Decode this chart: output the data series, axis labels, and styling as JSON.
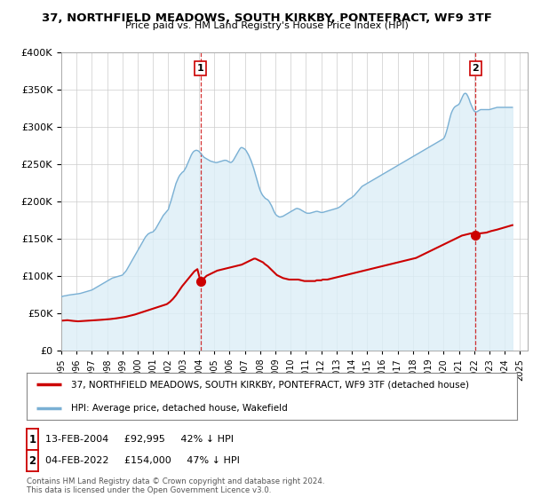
{
  "title": "37, NORTHFIELD MEADOWS, SOUTH KIRKBY, PONTEFRACT, WF9 3TF",
  "subtitle": "Price paid vs. HM Land Registry's House Price Index (HPI)",
  "ylim": [
    0,
    400000
  ],
  "xlim_start": 1995.0,
  "xlim_end": 2025.5,
  "hpi_years": [
    1995.0,
    1995.083,
    1995.167,
    1995.25,
    1995.333,
    1995.417,
    1995.5,
    1995.583,
    1995.667,
    1995.75,
    1995.833,
    1995.917,
    1996.0,
    1996.083,
    1996.167,
    1996.25,
    1996.333,
    1996.417,
    1996.5,
    1996.583,
    1996.667,
    1996.75,
    1996.833,
    1996.917,
    1997.0,
    1997.083,
    1997.167,
    1997.25,
    1997.333,
    1997.417,
    1997.5,
    1997.583,
    1997.667,
    1997.75,
    1997.833,
    1997.917,
    1998.0,
    1998.083,
    1998.167,
    1998.25,
    1998.333,
    1998.417,
    1998.5,
    1998.583,
    1998.667,
    1998.75,
    1998.833,
    1998.917,
    1999.0,
    1999.083,
    1999.167,
    1999.25,
    1999.333,
    1999.417,
    1999.5,
    1999.583,
    1999.667,
    1999.75,
    1999.833,
    1999.917,
    2000.0,
    2000.083,
    2000.167,
    2000.25,
    2000.333,
    2000.417,
    2000.5,
    2000.583,
    2000.667,
    2000.75,
    2000.833,
    2000.917,
    2001.0,
    2001.083,
    2001.167,
    2001.25,
    2001.333,
    2001.417,
    2001.5,
    2001.583,
    2001.667,
    2001.75,
    2001.833,
    2001.917,
    2002.0,
    2002.083,
    2002.167,
    2002.25,
    2002.333,
    2002.417,
    2002.5,
    2002.583,
    2002.667,
    2002.75,
    2002.833,
    2002.917,
    2003.0,
    2003.083,
    2003.167,
    2003.25,
    2003.333,
    2003.417,
    2003.5,
    2003.583,
    2003.667,
    2003.75,
    2003.833,
    2003.917,
    2004.0,
    2004.083,
    2004.167,
    2004.25,
    2004.333,
    2004.417,
    2004.5,
    2004.583,
    2004.667,
    2004.75,
    2004.833,
    2004.917,
    2005.0,
    2005.083,
    2005.167,
    2005.25,
    2005.333,
    2005.417,
    2005.5,
    2005.583,
    2005.667,
    2005.75,
    2005.833,
    2005.917,
    2006.0,
    2006.083,
    2006.167,
    2006.25,
    2006.333,
    2006.417,
    2006.5,
    2006.583,
    2006.667,
    2006.75,
    2006.833,
    2006.917,
    2007.0,
    2007.083,
    2007.167,
    2007.25,
    2007.333,
    2007.417,
    2007.5,
    2007.583,
    2007.667,
    2007.75,
    2007.833,
    2007.917,
    2008.0,
    2008.083,
    2008.167,
    2008.25,
    2008.333,
    2008.417,
    2008.5,
    2008.583,
    2008.667,
    2008.75,
    2008.833,
    2008.917,
    2009.0,
    2009.083,
    2009.167,
    2009.25,
    2009.333,
    2009.417,
    2009.5,
    2009.583,
    2009.667,
    2009.75,
    2009.833,
    2009.917,
    2010.0,
    2010.083,
    2010.167,
    2010.25,
    2010.333,
    2010.417,
    2010.5,
    2010.583,
    2010.667,
    2010.75,
    2010.833,
    2010.917,
    2011.0,
    2011.083,
    2011.167,
    2011.25,
    2011.333,
    2011.417,
    2011.5,
    2011.583,
    2011.667,
    2011.75,
    2011.833,
    2011.917,
    2012.0,
    2012.083,
    2012.167,
    2012.25,
    2012.333,
    2012.417,
    2012.5,
    2012.583,
    2012.667,
    2012.75,
    2012.833,
    2012.917,
    2013.0,
    2013.083,
    2013.167,
    2013.25,
    2013.333,
    2013.417,
    2013.5,
    2013.583,
    2013.667,
    2013.75,
    2013.833,
    2013.917,
    2014.0,
    2014.083,
    2014.167,
    2014.25,
    2014.333,
    2014.417,
    2014.5,
    2014.583,
    2014.667,
    2014.75,
    2014.833,
    2014.917,
    2015.0,
    2015.083,
    2015.167,
    2015.25,
    2015.333,
    2015.417,
    2015.5,
    2015.583,
    2015.667,
    2015.75,
    2015.833,
    2015.917,
    2016.0,
    2016.083,
    2016.167,
    2016.25,
    2016.333,
    2016.417,
    2016.5,
    2016.583,
    2016.667,
    2016.75,
    2016.833,
    2016.917,
    2017.0,
    2017.083,
    2017.167,
    2017.25,
    2017.333,
    2017.417,
    2017.5,
    2017.583,
    2017.667,
    2017.75,
    2017.833,
    2017.917,
    2018.0,
    2018.083,
    2018.167,
    2018.25,
    2018.333,
    2018.417,
    2018.5,
    2018.583,
    2018.667,
    2018.75,
    2018.833,
    2018.917,
    2019.0,
    2019.083,
    2019.167,
    2019.25,
    2019.333,
    2019.417,
    2019.5,
    2019.583,
    2019.667,
    2019.75,
    2019.833,
    2019.917,
    2020.0,
    2020.083,
    2020.167,
    2020.25,
    2020.333,
    2020.417,
    2020.5,
    2020.583,
    2020.667,
    2020.75,
    2020.833,
    2020.917,
    2021.0,
    2021.083,
    2021.167,
    2021.25,
    2021.333,
    2021.417,
    2021.5,
    2021.583,
    2021.667,
    2021.75,
    2021.833,
    2021.917,
    2022.0,
    2022.083,
    2022.167,
    2022.25,
    2022.333,
    2022.417,
    2022.5,
    2022.583,
    2022.667,
    2022.75,
    2022.833,
    2022.917,
    2023.0,
    2023.083,
    2023.167,
    2023.25,
    2023.333,
    2023.417,
    2023.5,
    2023.583,
    2023.667,
    2023.75,
    2023.833,
    2023.917,
    2024.0,
    2024.083,
    2024.167,
    2024.25,
    2024.333,
    2024.417,
    2024.5
  ],
  "hpi_values": [
    72000,
    72500,
    73000,
    73200,
    73500,
    74000,
    74200,
    74500,
    74800,
    75000,
    75200,
    75400,
    75600,
    75900,
    76200,
    76500,
    77000,
    77500,
    78000,
    78500,
    79000,
    79500,
    80000,
    80500,
    81000,
    82000,
    83000,
    84000,
    85000,
    86000,
    87000,
    88000,
    89000,
    90000,
    91000,
    92000,
    93000,
    94000,
    95000,
    96000,
    97000,
    97500,
    98000,
    98500,
    99000,
    99500,
    100000,
    100500,
    101000,
    103000,
    105000,
    107000,
    110000,
    113000,
    116000,
    119000,
    122000,
    125000,
    128000,
    131000,
    134000,
    137000,
    140000,
    143000,
    146000,
    149000,
    152000,
    154000,
    156000,
    157000,
    158000,
    158500,
    159000,
    161000,
    163000,
    166000,
    169000,
    172000,
    175000,
    178000,
    181000,
    183000,
    185000,
    187000,
    189000,
    195000,
    200000,
    206000,
    212000,
    218000,
    224000,
    228000,
    232000,
    235000,
    237000,
    239000,
    240000,
    243000,
    246000,
    250000,
    254000,
    258000,
    262000,
    265000,
    267000,
    268000,
    268500,
    268000,
    267000,
    265000,
    263000,
    261000,
    259000,
    258000,
    257000,
    256000,
    255000,
    254000,
    253500,
    253000,
    252500,
    252000,
    252000,
    252500,
    253000,
    253500,
    254000,
    254500,
    255000,
    255000,
    254500,
    253500,
    252500,
    252000,
    253000,
    255000,
    258000,
    261000,
    264000,
    267000,
    270000,
    272000,
    272000,
    271000,
    270000,
    268000,
    265000,
    262000,
    258000,
    254000,
    249000,
    244000,
    238000,
    232000,
    226000,
    220000,
    215000,
    211000,
    208000,
    206000,
    204000,
    203000,
    202000,
    200000,
    197000,
    194000,
    190000,
    186000,
    183000,
    181000,
    180000,
    179000,
    179000,
    179500,
    180000,
    181000,
    182000,
    183000,
    184000,
    185000,
    186000,
    187000,
    188000,
    189000,
    190000,
    190500,
    190000,
    189500,
    188500,
    187500,
    186500,
    185500,
    184500,
    184000,
    184000,
    184000,
    184500,
    185000,
    185500,
    186000,
    186500,
    186500,
    186000,
    185500,
    185000,
    185000,
    185500,
    186000,
    186500,
    187000,
    187500,
    188000,
    188500,
    189000,
    189500,
    190000,
    190500,
    191000,
    192000,
    193000,
    194500,
    196000,
    197500,
    199000,
    200500,
    202000,
    203000,
    204000,
    205000,
    206500,
    208000,
    210000,
    212000,
    214000,
    216000,
    218000,
    220000,
    221000,
    222000,
    223000,
    224000,
    225000,
    226000,
    227000,
    228000,
    229000,
    230000,
    231000,
    232000,
    233000,
    234000,
    235000,
    236000,
    237000,
    238000,
    239000,
    240000,
    241000,
    242000,
    243000,
    244000,
    245000,
    246000,
    247000,
    248000,
    249000,
    250000,
    251000,
    252000,
    253000,
    254000,
    255000,
    256000,
    257000,
    258000,
    259000,
    260000,
    261000,
    262000,
    263000,
    264000,
    265000,
    266000,
    267000,
    268000,
    269000,
    270000,
    271000,
    272000,
    273000,
    274000,
    275000,
    276000,
    277000,
    278000,
    279000,
    280000,
    281000,
    282000,
    283000,
    284000,
    287000,
    292000,
    298000,
    305000,
    312000,
    318000,
    322000,
    325000,
    327000,
    328000,
    329000,
    330000,
    333000,
    337000,
    341000,
    344000,
    345000,
    344000,
    341000,
    337000,
    332000,
    328000,
    324000,
    321000,
    320000,
    320000,
    321000,
    322000,
    323000,
    323000,
    323000,
    323000,
    323000,
    323000,
    323000,
    323000,
    323500,
    324000,
    324500,
    325000,
    325500,
    326000,
    326000,
    326000,
    326000,
    326000,
    326000,
    326000,
    326000,
    326000,
    326000,
    326000,
    326000,
    326000
  ],
  "price_years": [
    1995.1,
    1995.4,
    1995.8,
    1996.1,
    1996.5,
    1996.9,
    1997.2,
    1997.6,
    1997.9,
    1998.2,
    1998.6,
    1998.9,
    1999.2,
    1999.5,
    1999.8,
    2000.1,
    2000.4,
    2000.7,
    2001.0,
    2001.3,
    2001.6,
    2001.9,
    2002.1,
    2002.3,
    2002.5,
    2002.7,
    2002.9,
    2003.1,
    2003.3,
    2003.5,
    2003.7,
    2003.9,
    2004.1,
    2004.3,
    2004.5,
    2004.8,
    2005.0,
    2005.2,
    2005.4,
    2005.6,
    2005.8,
    2006.0,
    2006.2,
    2006.4,
    2006.6,
    2006.8,
    2007.0,
    2007.2,
    2007.4,
    2007.5,
    2007.6,
    2007.7,
    2007.8,
    2007.9,
    2008.0,
    2008.1,
    2008.2,
    2008.3,
    2008.5,
    2008.7,
    2008.9,
    2009.1,
    2009.3,
    2009.5,
    2009.7,
    2009.9,
    2010.1,
    2010.3,
    2010.5,
    2010.7,
    2010.9,
    2011.1,
    2011.3,
    2011.5,
    2011.6,
    2011.7,
    2011.8,
    2011.9,
    2012.0,
    2012.1,
    2012.2,
    2012.4,
    2012.6,
    2012.8,
    2013.0,
    2013.2,
    2013.4,
    2013.6,
    2013.8,
    2014.0,
    2014.2,
    2014.4,
    2014.6,
    2014.8,
    2015.0,
    2015.2,
    2015.4,
    2015.6,
    2015.8,
    2016.0,
    2016.2,
    2016.4,
    2016.6,
    2016.8,
    2017.0,
    2017.2,
    2017.4,
    2017.6,
    2017.8,
    2018.0,
    2018.2,
    2018.4,
    2018.6,
    2018.8,
    2019.0,
    2019.2,
    2019.4,
    2019.6,
    2019.8,
    2020.0,
    2020.2,
    2020.4,
    2020.6,
    2020.8,
    2021.0,
    2021.2,
    2021.4,
    2021.6,
    2021.8,
    2022.1,
    2022.4,
    2022.8,
    2023.1,
    2023.5,
    2024.0,
    2024.5
  ],
  "price_values": [
    40000,
    40500,
    39500,
    39000,
    39500,
    40000,
    40500,
    41000,
    41500,
    42000,
    43000,
    44000,
    45000,
    46500,
    48000,
    50000,
    52000,
    54000,
    56000,
    58000,
    60000,
    62000,
    65000,
    69000,
    74000,
    80000,
    86000,
    91000,
    96000,
    101000,
    106000,
    109000,
    92995,
    96000,
    100000,
    103000,
    105000,
    107000,
    108000,
    109000,
    110000,
    111000,
    112000,
    113000,
    114000,
    115000,
    117000,
    119000,
    121000,
    122000,
    123000,
    123000,
    122000,
    121000,
    120000,
    119000,
    118000,
    116000,
    113000,
    109000,
    105000,
    101000,
    99000,
    97000,
    96000,
    95000,
    95000,
    95000,
    95000,
    94000,
    93000,
    93000,
    93000,
    93000,
    93000,
    94000,
    94000,
    94000,
    94000,
    95000,
    95000,
    95000,
    96000,
    97000,
    98000,
    99000,
    100000,
    101000,
    102000,
    103000,
    104000,
    105000,
    106000,
    107000,
    108000,
    109000,
    110000,
    111000,
    112000,
    113000,
    114000,
    115000,
    116000,
    117000,
    118000,
    119000,
    120000,
    121000,
    122000,
    123000,
    124000,
    126000,
    128000,
    130000,
    132000,
    134000,
    136000,
    138000,
    140000,
    142000,
    144000,
    146000,
    148000,
    150000,
    152000,
    154000,
    155000,
    156000,
    157000,
    154000,
    157000,
    158000,
    160000,
    162000,
    165000,
    168000
  ],
  "marker1_x": 2004.1,
  "marker1_y": 92995,
  "marker2_x": 2022.1,
  "marker2_y": 154000,
  "line1_color": "#cc0000",
  "line2_color": "#7ab0d4",
  "fill_color": "#dceef7",
  "fill_alpha": 0.8,
  "marker_color": "#cc0000",
  "vline_color": "#cc0000",
  "legend_line1": "37, NORTHFIELD MEADOWS, SOUTH KIRKBY, PONTEFRACT, WF9 3TF (detached house)",
  "legend_line2": "HPI: Average price, detached house, Wakefield",
  "footer_date1": "13-FEB-2004",
  "footer_price1": "£92,995",
  "footer_pct1": "42% ↓ HPI",
  "footer_date2": "04-FEB-2022",
  "footer_price2": "£154,000",
  "footer_pct2": "47% ↓ HPI",
  "copyright_text": "Contains HM Land Registry data © Crown copyright and database right 2024.\nThis data is licensed under the Open Government Licence v3.0.",
  "bg_color": "#ffffff",
  "grid_color": "#cccccc",
  "xtick_years": [
    1995,
    1996,
    1997,
    1998,
    1999,
    2000,
    2001,
    2002,
    2003,
    2004,
    2005,
    2006,
    2007,
    2008,
    2009,
    2010,
    2011,
    2012,
    2013,
    2014,
    2015,
    2016,
    2017,
    2018,
    2019,
    2020,
    2021,
    2022,
    2023,
    2024,
    2025
  ]
}
